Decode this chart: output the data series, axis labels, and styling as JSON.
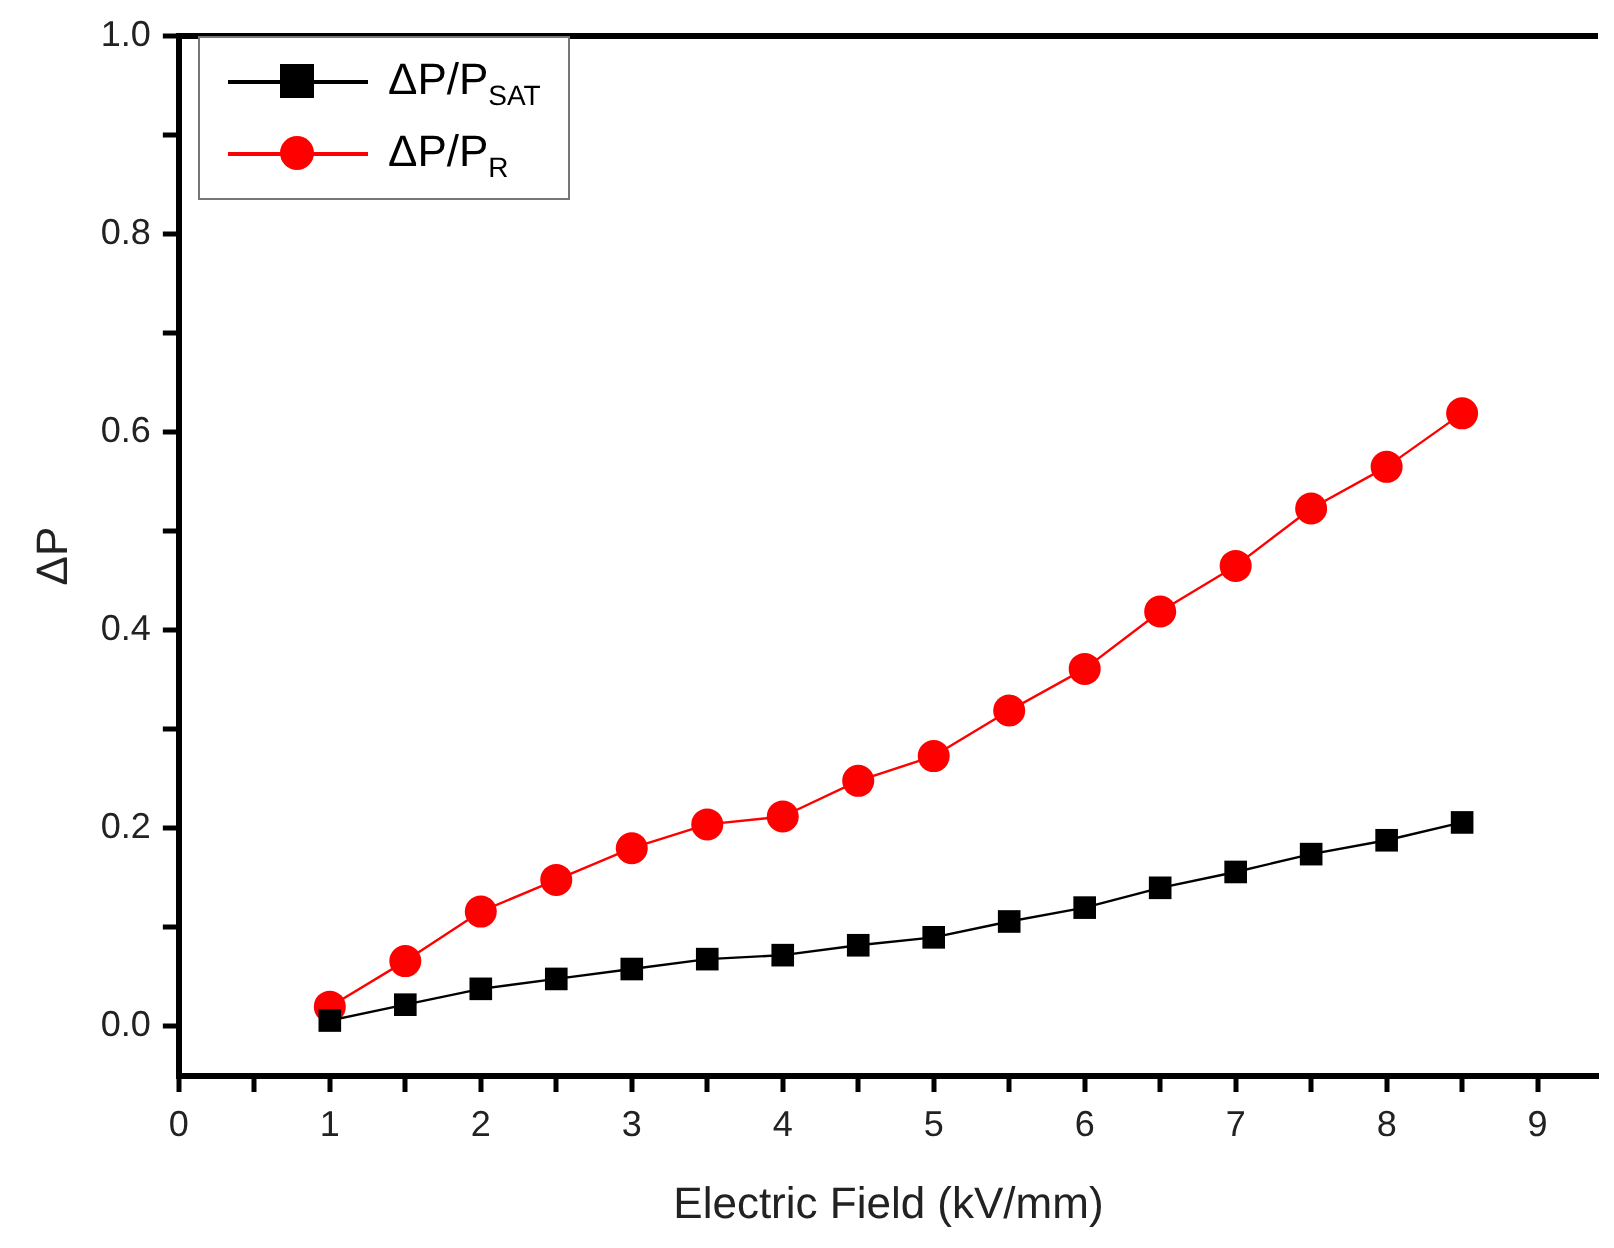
{
  "chart_data": {
    "type": "line",
    "xlabel": "Electric Field (kV/mm)",
    "ylabel": "ΔP",
    "x": [
      1,
      1.5,
      2,
      2.5,
      3,
      3.5,
      4,
      4.5,
      5,
      5.5,
      6,
      6.5,
      7,
      7.5,
      8,
      8.5
    ],
    "series": [
      {
        "name": "ΔP/P$_{SAT}$",
        "color": "#000000",
        "marker": "square",
        "values": [
          0.006,
          0.022,
          0.038,
          0.048,
          0.058,
          0.068,
          0.072,
          0.082,
          0.09,
          0.106,
          0.12,
          0.14,
          0.156,
          0.174,
          0.188,
          0.206
        ]
      },
      {
        "name": "ΔP/P$_{R}$",
        "color": "#ff0000",
        "marker": "circle",
        "values": [
          0.02,
          0.066,
          0.116,
          0.148,
          0.18,
          0.204,
          0.212,
          0.248,
          0.273,
          0.319,
          0.361,
          0.419,
          0.465,
          0.523,
          0.565,
          0.619
        ]
      }
    ],
    "xlim": [
      0,
      9.4
    ],
    "xticks": [
      0,
      {
        "value": 0.5,
        "label": null
      },
      1,
      {
        "value": 1.5,
        "label": null
      },
      2,
      {
        "value": 2.5,
        "label": null
      },
      3,
      {
        "value": 3.5,
        "label": null
      },
      4,
      {
        "value": 4.5,
        "label": null
      },
      5,
      {
        "value": 5.5,
        "label": null
      },
      6,
      {
        "value": 6.5,
        "label": null
      },
      7,
      {
        "value": 7.5,
        "label": null
      },
      8,
      {
        "value": 8.5,
        "label": null
      },
      9
    ],
    "ylim": [
      -0.05,
      1.0
    ],
    "yticks": [
      {
        "value": 0,
        "label": "0.0"
      },
      {
        "value": 0.1,
        "label": null
      },
      {
        "value": 0.2,
        "label": "0.2"
      },
      {
        "value": 0.3,
        "label": null
      },
      {
        "value": 0.4,
        "label": "0.4"
      },
      {
        "value": 0.5,
        "label": null
      },
      {
        "value": 0.6,
        "label": "0.6"
      },
      {
        "value": 0.7,
        "label": null
      },
      {
        "value": 0.8,
        "label": "0.8"
      },
      {
        "value": 0.9,
        "label": null
      },
      {
        "value": 1.0,
        "label": "1.0"
      }
    ],
    "grid": false,
    "legend": "top left",
    "line_style": "solid"
  }
}
